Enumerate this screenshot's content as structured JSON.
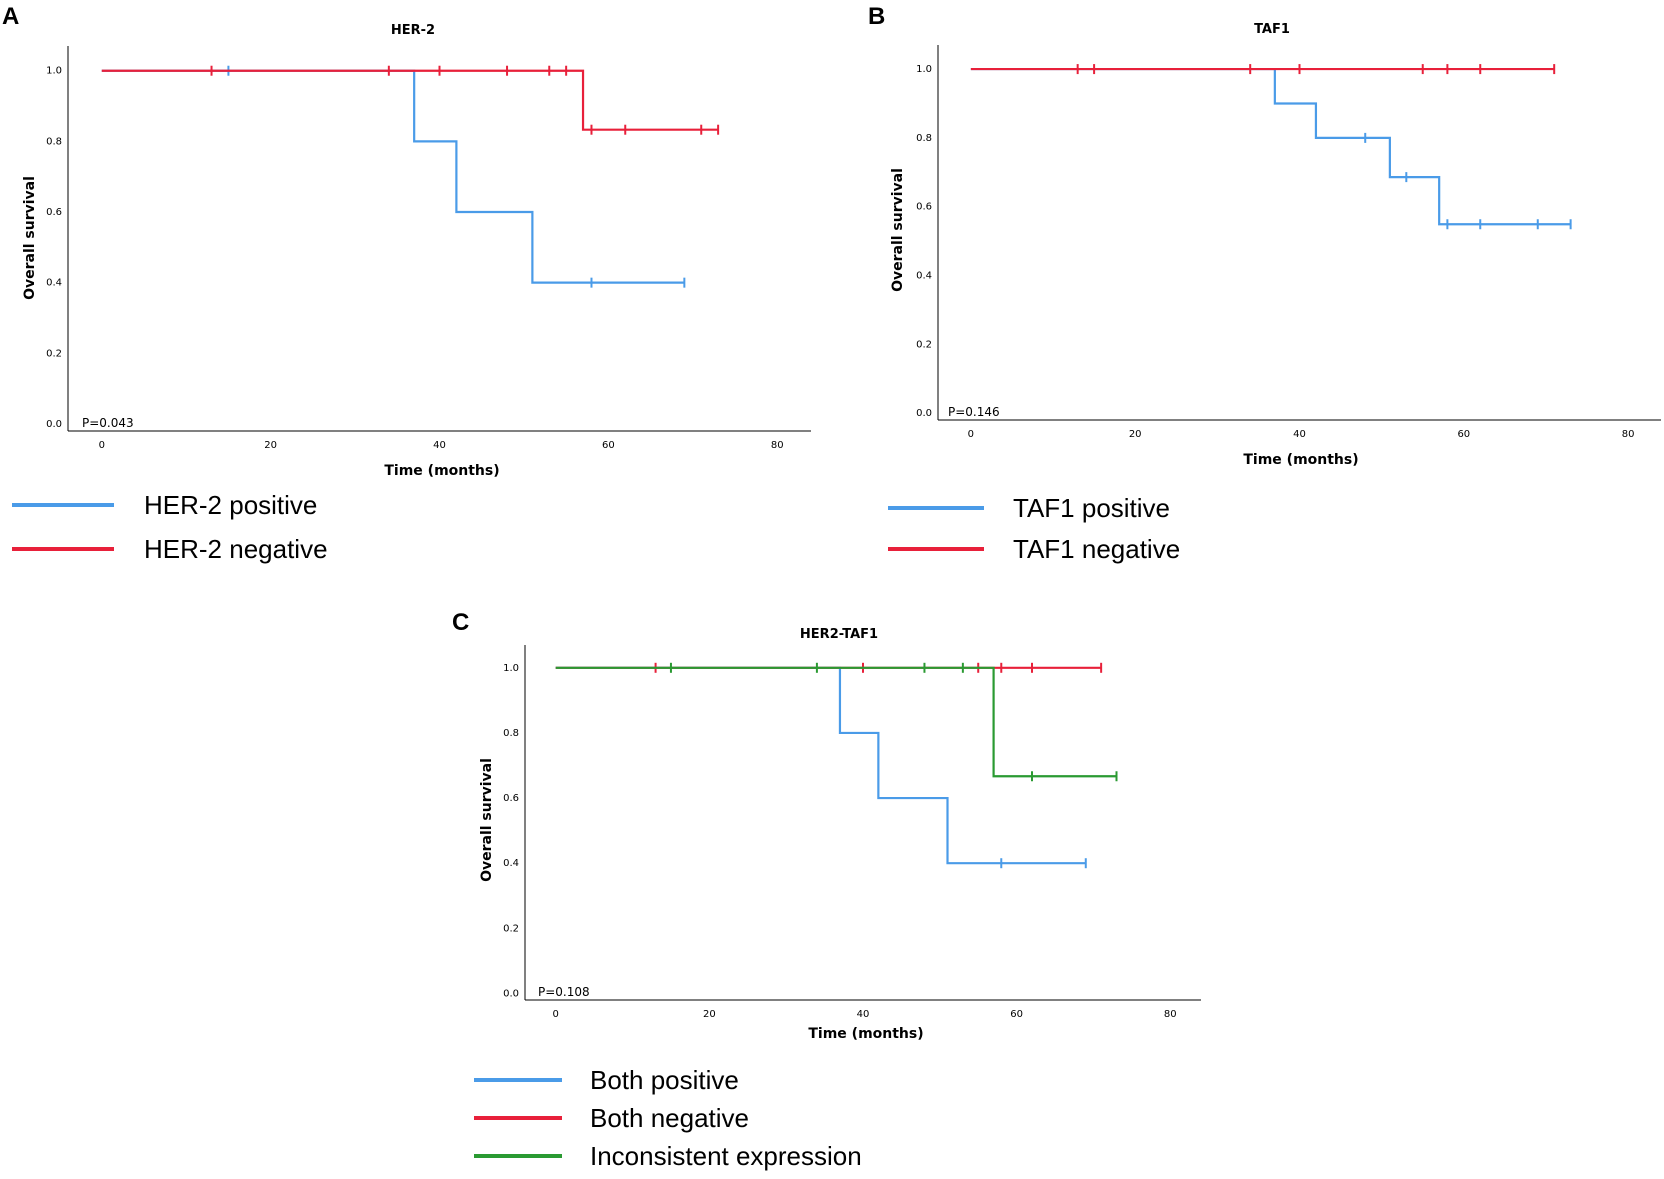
{
  "chart_data": [
    {
      "panel": "A",
      "type": "line",
      "title": "HER-2",
      "xlabel": "Time (months)",
      "ylabel": "Overall survival",
      "xlim": [
        -4,
        84
      ],
      "ylim": [
        -0.02,
        1.07
      ],
      "xticks": [
        0,
        20,
        40,
        60,
        80
      ],
      "yticks": [
        0.0,
        0.2,
        0.4,
        0.6,
        0.8,
        1.0
      ],
      "xtick_labels": [
        "0",
        "20",
        "40",
        "60",
        "80"
      ],
      "ytick_labels": [
        "0.0",
        "0.2",
        "0.4",
        "0.6",
        "0.8",
        "1.0"
      ],
      "pvalue": "P=0.043",
      "series": [
        {
          "name": "HER-2 positive",
          "color": "#4a9be8",
          "steps": [
            [
              0,
              1.0
            ],
            [
              37,
              0.8
            ],
            [
              42,
              0.6
            ],
            [
              51,
              0.4
            ],
            [
              69,
              0.4
            ]
          ],
          "censored": [
            [
              15,
              1.0
            ],
            [
              58,
              0.4
            ],
            [
              69,
              0.4
            ]
          ]
        },
        {
          "name": "HER-2 negative",
          "color": "#e8203a",
          "steps": [
            [
              0,
              1.0
            ],
            [
              57,
              0.833
            ],
            [
              73,
              0.833
            ]
          ],
          "censored": [
            [
              13,
              1.0
            ],
            [
              34,
              1.0
            ],
            [
              40,
              1.0
            ],
            [
              48,
              1.0
            ],
            [
              53,
              1.0
            ],
            [
              55,
              1.0
            ],
            [
              58,
              0.833
            ],
            [
              62,
              0.833
            ],
            [
              71,
              0.833
            ],
            [
              73,
              0.833
            ]
          ]
        }
      ]
    },
    {
      "panel": "B",
      "type": "line",
      "title": "TAF1",
      "xlabel": "Time (months)",
      "ylabel": "Overall survival",
      "xlim": [
        -4,
        84
      ],
      "ylim": [
        -0.02,
        1.07
      ],
      "xticks": [
        0,
        20,
        40,
        60,
        80
      ],
      "yticks": [
        0.0,
        0.2,
        0.4,
        0.6,
        0.8,
        1.0
      ],
      "xtick_labels": [
        "0",
        "20",
        "40",
        "60",
        "80"
      ],
      "ytick_labels": [
        "0.0",
        "0.2",
        "0.4",
        "0.6",
        "0.8",
        "1.0"
      ],
      "pvalue": "P=0.146",
      "series": [
        {
          "name": "TAF1 positive",
          "color": "#4a9be8",
          "steps": [
            [
              0,
              1.0
            ],
            [
              37,
              0.9
            ],
            [
              42,
              0.8
            ],
            [
              51,
              0.686
            ],
            [
              57,
              0.549
            ],
            [
              73,
              0.549
            ]
          ],
          "censored": [
            [
              48,
              0.8
            ],
            [
              53,
              0.686
            ],
            [
              58,
              0.549
            ],
            [
              62,
              0.549
            ],
            [
              69,
              0.549
            ],
            [
              73,
              0.549
            ]
          ]
        },
        {
          "name": "TAF1 negative",
          "color": "#e8203a",
          "steps": [
            [
              0,
              1.0
            ],
            [
              71,
              1.0
            ]
          ],
          "censored": [
            [
              13,
              1.0
            ],
            [
              15,
              1.0
            ],
            [
              34,
              1.0
            ],
            [
              40,
              1.0
            ],
            [
              55,
              1.0
            ],
            [
              58,
              1.0
            ],
            [
              62,
              1.0
            ],
            [
              71,
              1.0
            ]
          ]
        }
      ]
    },
    {
      "panel": "C",
      "type": "line",
      "title": "HER2-TAF1",
      "xlabel": "Time (months)",
      "ylabel": "Overall survival",
      "xlim": [
        -4,
        84
      ],
      "ylim": [
        -0.02,
        1.07
      ],
      "xticks": [
        0,
        20,
        40,
        60,
        80
      ],
      "yticks": [
        0.0,
        0.2,
        0.4,
        0.6,
        0.8,
        1.0
      ],
      "xtick_labels": [
        "0",
        "20",
        "40",
        "60",
        "80"
      ],
      "ytick_labels": [
        "0.0",
        "0.2",
        "0.4",
        "0.6",
        "0.8",
        "1.0"
      ],
      "pvalue": "P=0.108",
      "series": [
        {
          "name": "Both positive",
          "color": "#4a9be8",
          "steps": [
            [
              0,
              1.0
            ],
            [
              37,
              0.8
            ],
            [
              42,
              0.6
            ],
            [
              51,
              0.4
            ],
            [
              69,
              0.4
            ]
          ],
          "censored": [
            [
              58,
              0.4
            ],
            [
              69,
              0.4
            ]
          ]
        },
        {
          "name": "Both negative",
          "color": "#e8203a",
          "steps": [
            [
              0,
              1.0
            ],
            [
              71,
              1.0
            ]
          ],
          "censored": [
            [
              13,
              1.0
            ],
            [
              40,
              1.0
            ],
            [
              55,
              1.0
            ],
            [
              58,
              1.0
            ],
            [
              62,
              1.0
            ],
            [
              71,
              1.0
            ]
          ]
        },
        {
          "name": "Inconsistent expression",
          "color": "#2a9a32",
          "steps": [
            [
              0,
              1.0
            ],
            [
              57,
              0.667
            ],
            [
              73,
              0.667
            ]
          ],
          "censored": [
            [
              15,
              1.0
            ],
            [
              34,
              1.0
            ],
            [
              48,
              1.0
            ],
            [
              53,
              1.0
            ],
            [
              62,
              0.667
            ],
            [
              73,
              0.667
            ]
          ]
        }
      ]
    }
  ]
}
